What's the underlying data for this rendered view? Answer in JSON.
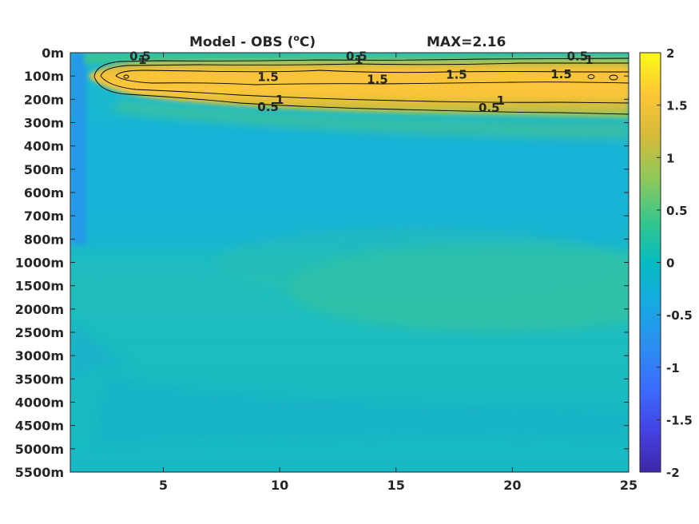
{
  "chart_data": {
    "type": "heatmap",
    "title": {
      "left_main": "Model - OBS (",
      "left_sup": "o",
      "left_tail": "C)",
      "right": "MAX=2.16"
    },
    "x_ticks": [
      5,
      10,
      15,
      20,
      25
    ],
    "x_tick_labels": [
      "5",
      "10",
      "15",
      "20",
      "25"
    ],
    "xlim": [
      1,
      25
    ],
    "y_tick_labels": [
      "0m",
      "100m",
      "200m",
      "300m",
      "400m",
      "500m",
      "600m",
      "700m",
      "800m",
      "1000m",
      "1500m",
      "2000m",
      "2500m",
      "3000m",
      "3500m",
      "4000m",
      "4500m",
      "5000m",
      "5500m"
    ],
    "colorbar": {
      "range": [
        -2,
        2
      ],
      "ticks": [
        2,
        1.5,
        1,
        0.5,
        0,
        -0.5,
        -1,
        -1.5,
        -2
      ],
      "tick_labels": [
        "2",
        "1.5",
        "1",
        "0.5",
        "0",
        "-0.5",
        "-1",
        "-1.5",
        "-2"
      ],
      "colormap": "parula"
    },
    "max_value": 2.16,
    "contours": [
      {
        "level": 0.5,
        "label": "0.5",
        "label_points": [
          [
            4.0,
            15
          ],
          [
            13.3,
            15
          ],
          [
            22.8,
            15
          ],
          [
            9.5,
            233
          ],
          [
            19.0,
            237
          ]
        ]
      },
      {
        "level": 1,
        "label": "1",
        "label_points": [
          [
            4.1,
            30
          ],
          [
            13.4,
            30
          ],
          [
            23.3,
            30
          ],
          [
            10.0,
            203
          ],
          [
            19.5,
            205
          ]
        ]
      },
      {
        "level": 1.5,
        "label": "1.5",
        "label_points": [
          [
            9.5,
            105
          ],
          [
            14.2,
            115
          ],
          [
            17.6,
            95
          ],
          [
            22.1,
            92
          ]
        ]
      }
    ]
  }
}
